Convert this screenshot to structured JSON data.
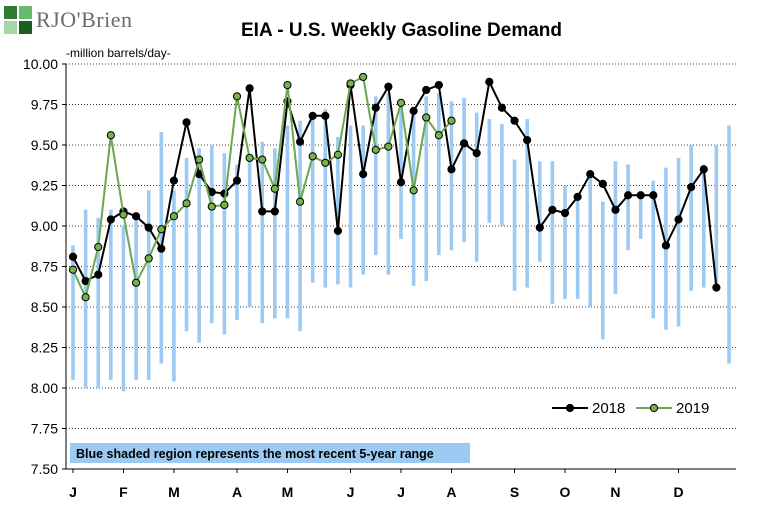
{
  "brand": {
    "name": "RJO'Brien",
    "colors": [
      "#2e7d32",
      "#66bb6a",
      "#1b5e20",
      "#a5d6a7"
    ]
  },
  "header": {
    "title": "EIA - U.S. Weekly Gasoline Demand",
    "unit": "-million barrels/day-"
  },
  "chart_data": {
    "type": "line",
    "title": "EIA - U.S. Weekly Gasoline Demand",
    "ylabel": "-million barrels/day-",
    "ylim": [
      7.5,
      10.0
    ],
    "yticks": [
      "10.00",
      "9.75",
      "9.50",
      "9.25",
      "9.00",
      "8.75",
      "8.50",
      "8.25",
      "8.00",
      "7.75",
      "7.50"
    ],
    "xlim": [
      1,
      53
    ],
    "months": [
      {
        "label": "J",
        "week": 1
      },
      {
        "label": "F",
        "week": 5
      },
      {
        "label": "M",
        "week": 9
      },
      {
        "label": "A",
        "week": 14
      },
      {
        "label": "M",
        "week": 18
      },
      {
        "label": "J",
        "week": 23
      },
      {
        "label": "J",
        "week": 27
      },
      {
        "label": "A",
        "week": 31
      },
      {
        "label": "S",
        "week": 36
      },
      {
        "label": "O",
        "week": 40
      },
      {
        "label": "N",
        "week": 44
      },
      {
        "label": "D",
        "week": 49
      }
    ],
    "range_note": "Blue shaded region represents the most recent 5-year range",
    "range_color": "#9ccaf2",
    "range": {
      "low": [
        8.05,
        8.0,
        8.0,
        8.05,
        7.98,
        8.05,
        8.05,
        8.15,
        8.04,
        8.35,
        8.28,
        8.4,
        8.33,
        8.42,
        8.5,
        8.4,
        8.43,
        8.43,
        8.35,
        8.65,
        8.62,
        8.64,
        8.62,
        8.7,
        8.82,
        8.7,
        8.92,
        8.63,
        8.66,
        8.82,
        8.85,
        8.9,
        8.78,
        9.02,
        9.0,
        8.6,
        8.62,
        8.78,
        8.52,
        8.55,
        8.55,
        8.5,
        8.3,
        8.58,
        8.85,
        8.92,
        8.43,
        8.36,
        8.38,
        8.6,
        8.62,
        8.6,
        8.15
      ],
      "high": [
        8.88,
        9.1,
        9.05,
        9.1,
        9.0,
        9.05,
        9.22,
        9.58,
        9.22,
        9.42,
        9.48,
        9.5,
        9.45,
        9.38,
        9.4,
        9.52,
        9.48,
        9.62,
        9.65,
        9.7,
        9.72,
        9.55,
        9.62,
        9.62,
        9.8,
        9.82,
        9.75,
        9.72,
        9.8,
        9.82,
        9.77,
        9.79,
        9.7,
        9.66,
        9.63,
        9.41,
        9.66,
        9.4,
        9.4,
        9.25,
        9.18,
        9.3,
        9.15,
        9.4,
        9.38,
        9.2,
        9.28,
        9.36,
        9.42,
        9.5,
        9.38,
        9.5,
        9.62
      ]
    },
    "series": [
      {
        "name": "2018",
        "color": "#000000",
        "marker": "#000000",
        "values": [
          8.81,
          8.66,
          8.7,
          9.04,
          9.09,
          9.06,
          8.99,
          8.86,
          9.28,
          9.64,
          9.32,
          9.21,
          9.2,
          9.28,
          9.85,
          9.09,
          9.09,
          9.77,
          9.52,
          9.68,
          9.68,
          8.97,
          9.87,
          9.32,
          9.73,
          9.86,
          9.27,
          9.71,
          9.84,
          9.87,
          9.35,
          9.51,
          9.45,
          9.89,
          9.73,
          9.65,
          9.53,
          8.99,
          9.1,
          9.08,
          9.18,
          9.32,
          9.26,
          9.1,
          9.19,
          9.19,
          9.19,
          8.88,
          9.04,
          9.24,
          9.35,
          8.62
        ]
      },
      {
        "name": "2019",
        "color": "#6aa84f",
        "marker": "#78b04a",
        "values": [
          8.73,
          8.56,
          8.87,
          9.56,
          9.07,
          8.65,
          8.8,
          8.98,
          9.06,
          9.14,
          9.41,
          9.12,
          9.13,
          9.8,
          9.42,
          9.41,
          9.23,
          9.87,
          9.15,
          9.43,
          9.39,
          9.44,
          9.88,
          9.92,
          9.47,
          9.49,
          9.76,
          9.22,
          9.67,
          9.56,
          9.65
        ]
      }
    ]
  }
}
